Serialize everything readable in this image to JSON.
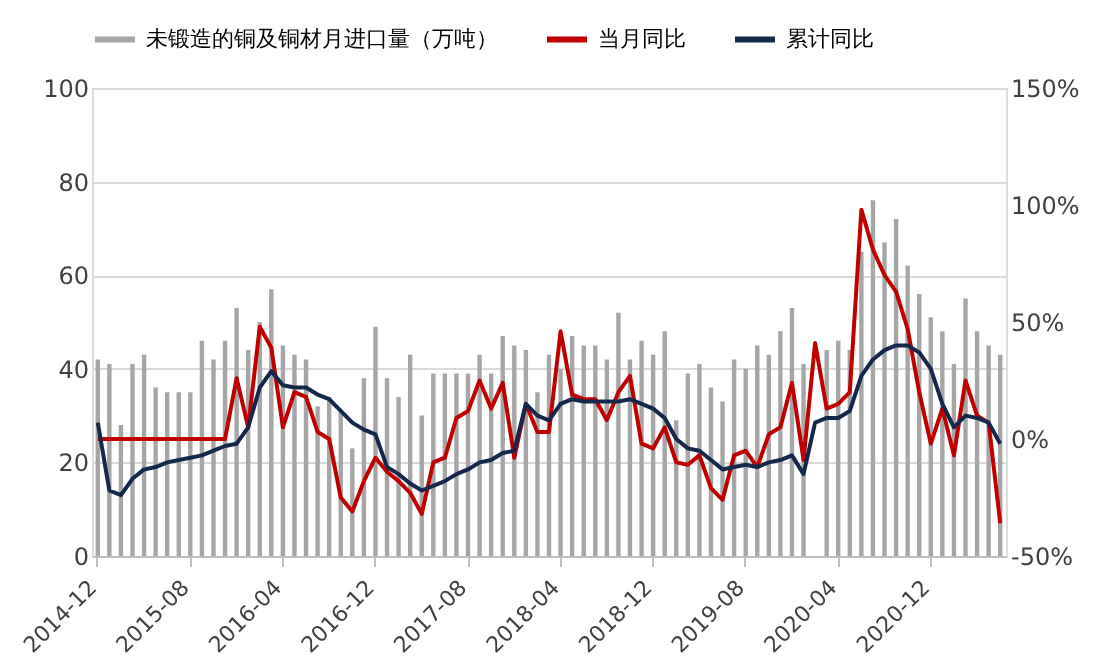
{
  "chart_data": {
    "type": "bar",
    "categories": [
      "2014-12",
      null,
      null,
      null,
      null,
      null,
      null,
      null,
      "2015-08",
      null,
      null,
      null,
      null,
      null,
      null,
      null,
      "2016-04",
      null,
      null,
      null,
      null,
      null,
      null,
      null,
      "2016-12",
      null,
      null,
      null,
      null,
      null,
      null,
      null,
      "2017-08",
      null,
      null,
      null,
      null,
      null,
      null,
      null,
      "2018-04",
      null,
      null,
      null,
      null,
      null,
      null,
      null,
      "2018-12",
      null,
      null,
      null,
      null,
      null,
      null,
      null,
      "2019-08",
      null,
      null,
      null,
      null,
      null,
      null,
      null,
      "2020-04",
      null,
      null,
      null,
      null,
      null,
      null,
      null,
      "2020-12",
      null,
      null,
      null,
      null,
      null,
      null
    ],
    "series": [
      {
        "name": "未锻造的铜及铜材月进口量（万吨）",
        "color": "#a6a6a6",
        "values": [
          42,
          41,
          28,
          41,
          43,
          36,
          35,
          35,
          35,
          46,
          42,
          46,
          53,
          44,
          50,
          57,
          45,
          43,
          42,
          32,
          34,
          31,
          23,
          38,
          49,
          38,
          34,
          43,
          30,
          39,
          39,
          39,
          39,
          43,
          39,
          47,
          45,
          44,
          35,
          43,
          40,
          47,
          45,
          45,
          42,
          52,
          42,
          46,
          43,
          48,
          29,
          39,
          41,
          36,
          33,
          42,
          40,
          45,
          43,
          48,
          53,
          41,
          null,
          44,
          46,
          44,
          65,
          76,
          67,
          72,
          62,
          56,
          51,
          48,
          41,
          55,
          48,
          45,
          43
        ]
      },
      {
        "name": "当月同比",
        "type": "line",
        "axis": "y2",
        "color": "#c00000",
        "values": [
          0,
          0,
          0,
          0,
          0,
          0,
          0,
          0,
          0,
          0,
          0,
          0,
          26,
          5,
          48,
          39,
          5,
          20,
          18,
          3,
          0,
          -25,
          -31,
          -18,
          -8,
          -14,
          -18,
          -23,
          -32,
          -10,
          -8,
          9,
          12,
          25,
          13,
          24,
          -8,
          15,
          3,
          3,
          46,
          19,
          17,
          17,
          8,
          20,
          27,
          -2,
          -4,
          5,
          -10,
          -11,
          -7,
          -21,
          -26,
          -7,
          -5,
          -12,
          2,
          5,
          24,
          -9,
          41,
          13,
          15,
          20,
          98,
          81,
          70,
          63,
          47,
          20,
          -2,
          13,
          -7,
          25,
          10,
          7,
          -36
        ]
      },
      {
        "name": "累计同比",
        "type": "line",
        "axis": "y2",
        "color": "#14284b",
        "values": [
          7,
          -22,
          -24,
          -17,
          -13,
          -12,
          -10,
          -9,
          -8,
          -7,
          -5,
          -3,
          -2,
          5,
          22,
          29,
          23,
          22,
          22,
          19,
          17,
          12,
          7,
          4,
          2,
          -12,
          -15,
          -19,
          -22,
          -20,
          -18,
          -15,
          -13,
          -10,
          -9,
          -6,
          -5,
          15,
          10,
          8,
          15,
          17,
          16,
          16,
          16,
          16,
          17,
          15,
          13,
          9,
          0,
          -4,
          -5,
          -9,
          -13,
          -12,
          -11,
          -12,
          -10,
          -9,
          -7,
          -15,
          7,
          9,
          9,
          12,
          27,
          34,
          38,
          40,
          40,
          37,
          30,
          15,
          5,
          10,
          9,
          7,
          -2
        ]
      }
    ],
    "ylim": [
      0,
      100
    ],
    "yticks": [
      0,
      20,
      40,
      60,
      80,
      100
    ],
    "y2lim": [
      -50,
      150
    ],
    "y2ticks": [
      {
        "value": -50,
        "label": "-50%"
      },
      {
        "value": 0,
        "label": "0%"
      },
      {
        "value": 50,
        "label": "50%"
      },
      {
        "value": 100,
        "label": "100%"
      },
      {
        "value": 150,
        "label": "150%"
      }
    ],
    "grid": "y",
    "legend": "top"
  }
}
